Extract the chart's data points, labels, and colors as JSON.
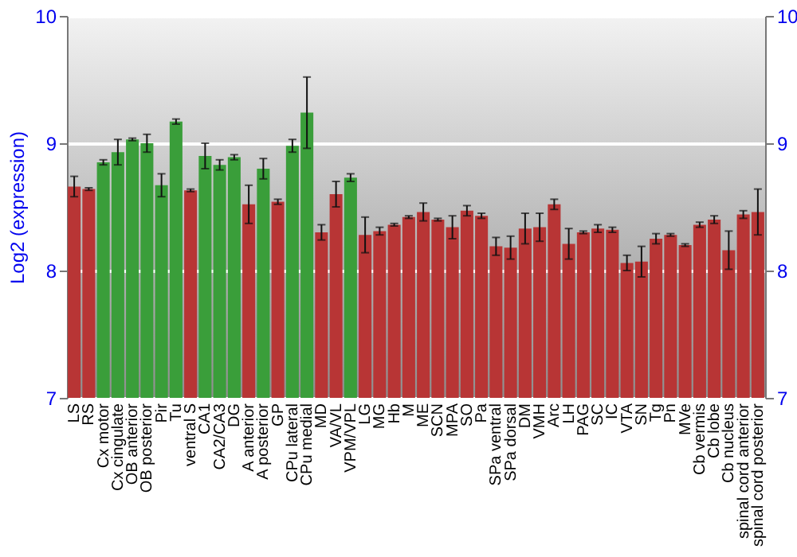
{
  "chart_data": {
    "type": "bar",
    "ylabel": "Log2 (expression)",
    "categories": [
      "LS",
      "RS",
      "Cx motor",
      "Cx cingulate",
      "OB anterior",
      "OB posterior",
      "Pir",
      "Tu",
      "ventral S",
      "CA1",
      "CA2/CA3",
      "DG",
      "A anterior",
      "A posterior",
      "GP",
      "CPu lateral",
      "CPu medial",
      "MD",
      "VA/VL",
      "VPM/VPL",
      "LG",
      "MG",
      "Hb",
      "M",
      "ME",
      "SCN",
      "MPA",
      "SO",
      "Pa",
      "SPa ventral",
      "SPa dorsal",
      "DM",
      "VMH",
      "Arc",
      "LH",
      "PAG",
      "SC",
      "IC",
      "VTA",
      "SN",
      "Tg",
      "Pn",
      "MVe",
      "Cb vermis",
      "Cb lobe",
      "Cb nucleus",
      "spinal cord anterior",
      "spinal cord posterior"
    ],
    "values": [
      8.66,
      8.64,
      8.85,
      8.93,
      9.03,
      9.0,
      8.67,
      9.17,
      8.63,
      8.9,
      8.83,
      8.89,
      8.52,
      8.8,
      8.54,
      8.98,
      9.24,
      8.3,
      8.6,
      8.73,
      8.28,
      8.31,
      8.36,
      8.42,
      8.46,
      8.4,
      8.34,
      8.47,
      8.43,
      8.19,
      8.18,
      8.33,
      8.34,
      8.52,
      8.21,
      8.3,
      8.33,
      8.32,
      8.06,
      8.07,
      8.25,
      8.28,
      8.2,
      8.36,
      8.4,
      8.16,
      8.44,
      8.46
    ],
    "errors": [
      0.08,
      0.01,
      0.02,
      0.1,
      0.01,
      0.07,
      0.09,
      0.02,
      0.01,
      0.1,
      0.04,
      0.02,
      0.15,
      0.08,
      0.02,
      0.05,
      0.28,
      0.06,
      0.1,
      0.03,
      0.14,
      0.03,
      0.01,
      0.01,
      0.07,
      0.01,
      0.09,
      0.04,
      0.02,
      0.07,
      0.09,
      0.12,
      0.11,
      0.04,
      0.12,
      0.01,
      0.03,
      0.02,
      0.06,
      0.12,
      0.04,
      0.01,
      0.01,
      0.02,
      0.03,
      0.15,
      0.03,
      0.18
    ],
    "colors": [
      "#b83535",
      "#b83535",
      "#3a9e3a",
      "#3a9e3a",
      "#3a9e3a",
      "#3a9e3a",
      "#3a9e3a",
      "#3a9e3a",
      "#b83535",
      "#3a9e3a",
      "#3a9e3a",
      "#3a9e3a",
      "#b83535",
      "#3a9e3a",
      "#b83535",
      "#3a9e3a",
      "#3a9e3a",
      "#b83535",
      "#b83535",
      "#3a9e3a",
      "#b83535",
      "#b83535",
      "#b83535",
      "#b83535",
      "#b83535",
      "#b83535",
      "#b83535",
      "#b83535",
      "#b83535",
      "#b83535",
      "#b83535",
      "#b83535",
      "#b83535",
      "#b83535",
      "#b83535",
      "#b83535",
      "#b83535",
      "#b83535",
      "#b83535",
      "#b83535",
      "#b83535",
      "#b83535",
      "#b83535",
      "#b83535",
      "#b83535",
      "#b83535",
      "#b83535",
      "#b83535"
    ],
    "ylim": [
      7,
      10
    ],
    "yticks": [
      7,
      8,
      9,
      10
    ],
    "y2lim": [
      7,
      10
    ],
    "y2ticks": [
      7,
      8,
      9,
      10
    ],
    "grid": "y"
  }
}
